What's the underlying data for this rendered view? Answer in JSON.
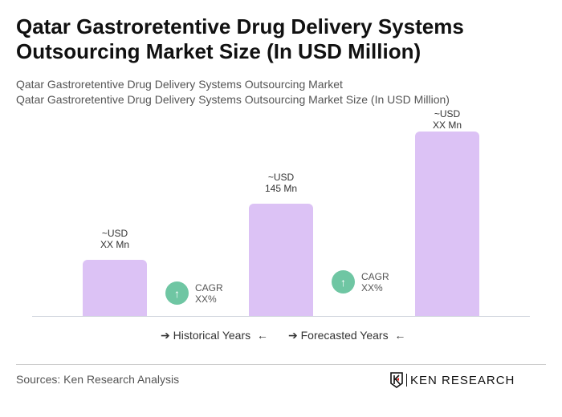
{
  "title": "Qatar Gastroretentive Drug Delivery Systems Outsourcing Market Size (In USD Million)",
  "subtitle1": "Qatar Gastroretentive Drug Delivery Systems Outsourcing Market",
  "subtitle2": "Qatar Gastroretentive Drug Delivery Systems Outsourcing Market Size (In USD Million)",
  "chart_data": {
    "type": "bar",
    "bars": [
      {
        "label_line1": "~USD",
        "label_line2": "XX Mn",
        "value": null
      },
      {
        "label_line1": "~USD",
        "label_line2": "145 Mn",
        "value": 145
      },
      {
        "label_line1": "~USD",
        "label_line2": "XX Mn",
        "value": null
      }
    ],
    "cagr": [
      {
        "label": "CAGR",
        "value": "XX%"
      },
      {
        "label": "CAGR",
        "value": "XX%"
      }
    ],
    "legend": {
      "historical": "Historical Years",
      "forecasted": "Forecasted Years"
    },
    "bar_color": "#dcc2f5",
    "cagr_color": "#6fc6a3"
  },
  "source": "Sources: Ken Research Analysis",
  "logo": "KEN RESEARCH"
}
